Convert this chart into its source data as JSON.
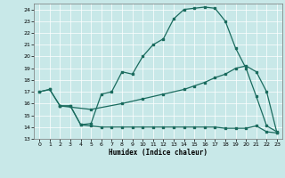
{
  "xlabel": "Humidex (Indice chaleur)",
  "bg_color": "#c8e8e8",
  "grid_color": "#ffffff",
  "line_color": "#1a6b5e",
  "ylim": [
    13,
    24.5
  ],
  "xlim": [
    -0.5,
    23.5
  ],
  "yticks": [
    13,
    14,
    15,
    16,
    17,
    18,
    19,
    20,
    21,
    22,
    23,
    24
  ],
  "xticks": [
    0,
    1,
    2,
    3,
    4,
    5,
    6,
    7,
    8,
    9,
    10,
    11,
    12,
    13,
    14,
    15,
    16,
    17,
    18,
    19,
    20,
    21,
    22,
    23
  ],
  "line1_x": [
    0,
    1,
    2,
    3,
    4,
    5,
    6,
    7,
    8,
    9,
    10,
    11,
    12,
    13,
    14,
    15,
    16,
    17,
    18,
    19,
    20,
    21,
    22,
    23
  ],
  "line1_y": [
    17.0,
    17.2,
    15.8,
    15.8,
    14.2,
    14.3,
    16.8,
    17.0,
    18.7,
    18.5,
    20.0,
    21.0,
    21.5,
    23.2,
    24.0,
    24.1,
    24.2,
    24.1,
    23.0,
    20.7,
    19.0,
    16.6,
    14.1,
    13.6
  ],
  "line2_x": [
    0,
    1,
    2,
    5,
    8,
    10,
    12,
    14,
    15,
    16,
    17,
    18,
    19,
    20,
    21,
    22,
    23
  ],
  "line2_y": [
    17.0,
    17.2,
    15.8,
    15.5,
    16.0,
    16.4,
    16.8,
    17.2,
    17.5,
    17.8,
    18.2,
    18.5,
    19.0,
    19.2,
    18.7,
    17.0,
    13.5
  ],
  "line3_x": [
    2,
    3,
    4,
    5,
    6,
    7,
    8,
    9,
    10,
    11,
    12,
    13,
    14,
    15,
    16,
    17,
    18,
    19,
    20,
    21,
    22,
    23
  ],
  "line3_y": [
    15.8,
    15.8,
    14.2,
    14.1,
    14.0,
    14.0,
    14.0,
    14.0,
    14.0,
    14.0,
    14.0,
    14.0,
    14.0,
    14.0,
    14.0,
    14.0,
    13.9,
    13.9,
    13.9,
    14.1,
    13.6,
    13.5
  ]
}
